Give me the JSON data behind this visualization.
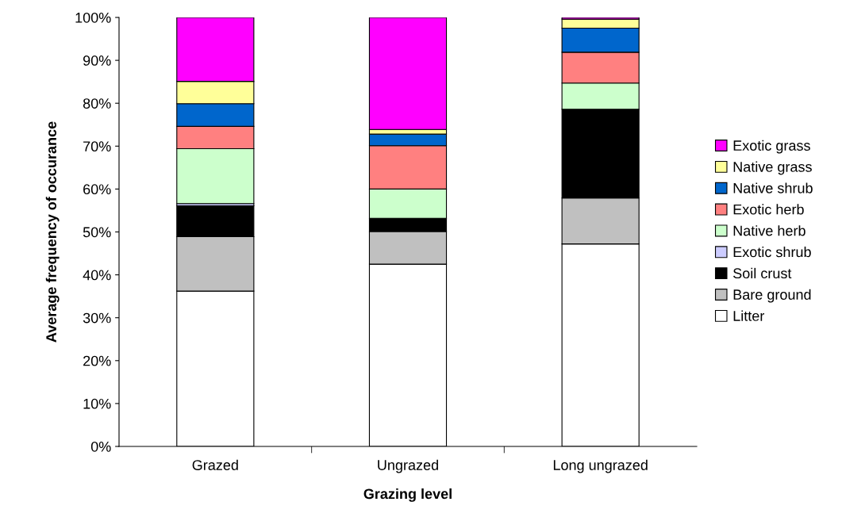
{
  "chart_data": {
    "type": "bar",
    "stacked": true,
    "xlabel": "Grazing level",
    "ylabel": "Average frequency of occurance",
    "categories": [
      "Grazed",
      "Ungrazed",
      "Long ungrazed"
    ],
    "ylim": [
      0,
      100
    ],
    "yticks": [
      {
        "value": 0,
        "label": "0%"
      },
      {
        "value": 10,
        "label": "10%"
      },
      {
        "value": 20,
        "label": "20%"
      },
      {
        "value": 30,
        "label": "30%"
      },
      {
        "value": 40,
        "label": "40%"
      },
      {
        "value": 50,
        "label": "50%"
      },
      {
        "value": 60,
        "label": "60%"
      },
      {
        "value": 70,
        "label": "70%"
      },
      {
        "value": 80,
        "label": "80%"
      },
      {
        "value": 90,
        "label": "90%"
      },
      {
        "value": 100,
        "label": "100%"
      }
    ],
    "grid": false,
    "legend": "right",
    "series": [
      {
        "name": "Litter",
        "color": "#ffffff",
        "values": [
          36.2,
          42.5,
          47.2
        ]
      },
      {
        "name": "Bare ground",
        "color": "#c0c0c0",
        "values": [
          12.7,
          7.6,
          10.7
        ]
      },
      {
        "name": "Soil crust",
        "color": "#000000",
        "values": [
          7.2,
          3.1,
          20.7
        ]
      },
      {
        "name": "Exotic shrub",
        "color": "#ccccff",
        "values": [
          0.5,
          0,
          0
        ]
      },
      {
        "name": "Native herb",
        "color": "#ccffcc",
        "values": [
          12.8,
          6.8,
          6.1
        ]
      },
      {
        "name": "Exotic herb",
        "color": "#ff8080",
        "values": [
          5.2,
          10.1,
          7.2
        ]
      },
      {
        "name": "Native shrub",
        "color": "#0066cc",
        "values": [
          5.3,
          2.7,
          5.6
        ]
      },
      {
        "name": "Native grass",
        "color": "#ffff99",
        "values": [
          5.2,
          1.1,
          2.1
        ]
      },
      {
        "name": "Exotic grass",
        "color": "#ff00ff",
        "values": [
          14.9,
          26.1,
          0.4
        ]
      }
    ]
  }
}
